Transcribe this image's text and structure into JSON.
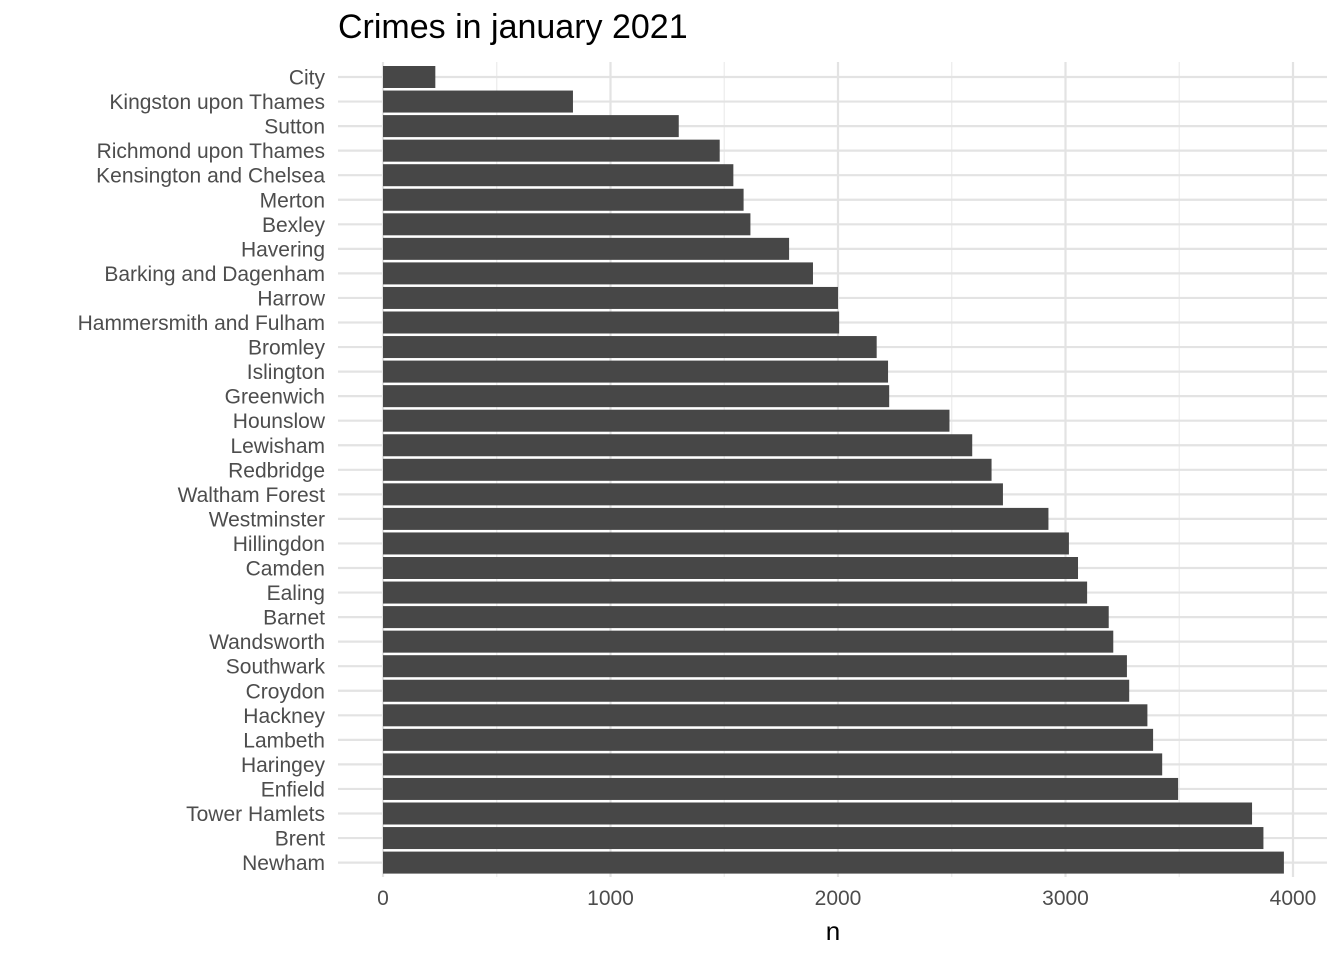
{
  "chart_data": {
    "type": "bar",
    "orientation": "horizontal",
    "title": "Crimes in january 2021",
    "xlabel": "n",
    "ylabel": "",
    "xlim": [
      0,
      4000
    ],
    "x_ticks": [
      0,
      1000,
      2000,
      3000,
      4000
    ],
    "x_tick_labels": [
      "0",
      "1000",
      "2000",
      "3000",
      "4000"
    ],
    "grid": true,
    "legend": "none",
    "bar_color": "#474747",
    "categories": [
      "City",
      "Kingston upon Thames",
      "Sutton",
      "Richmond upon Thames",
      "Kensington and Chelsea",
      "Merton",
      "Bexley",
      "Havering",
      "Barking and Dagenham",
      "Harrow",
      "Hammersmith and Fulham",
      "Bromley",
      "Islington",
      "Greenwich",
      "Hounslow",
      "Lewisham",
      "Redbridge",
      "Waltham Forest",
      "Westminster",
      "Hillingdon",
      "Camden",
      "Ealing",
      "Barnet",
      "Wandsworth",
      "Southwark",
      "Croydon",
      "Hackney",
      "Lambeth",
      "Haringey",
      "Enfield",
      "Tower Hamlets",
      "Brent",
      "Newham"
    ],
    "values": [
      230,
      835,
      1300,
      1480,
      1540,
      1585,
      1615,
      1785,
      1890,
      2000,
      2005,
      2170,
      2220,
      2225,
      2490,
      2590,
      2675,
      2725,
      2925,
      3015,
      3055,
      3095,
      3190,
      3210,
      3270,
      3280,
      3360,
      3385,
      3425,
      3495,
      3820,
      3870,
      3960
    ]
  }
}
